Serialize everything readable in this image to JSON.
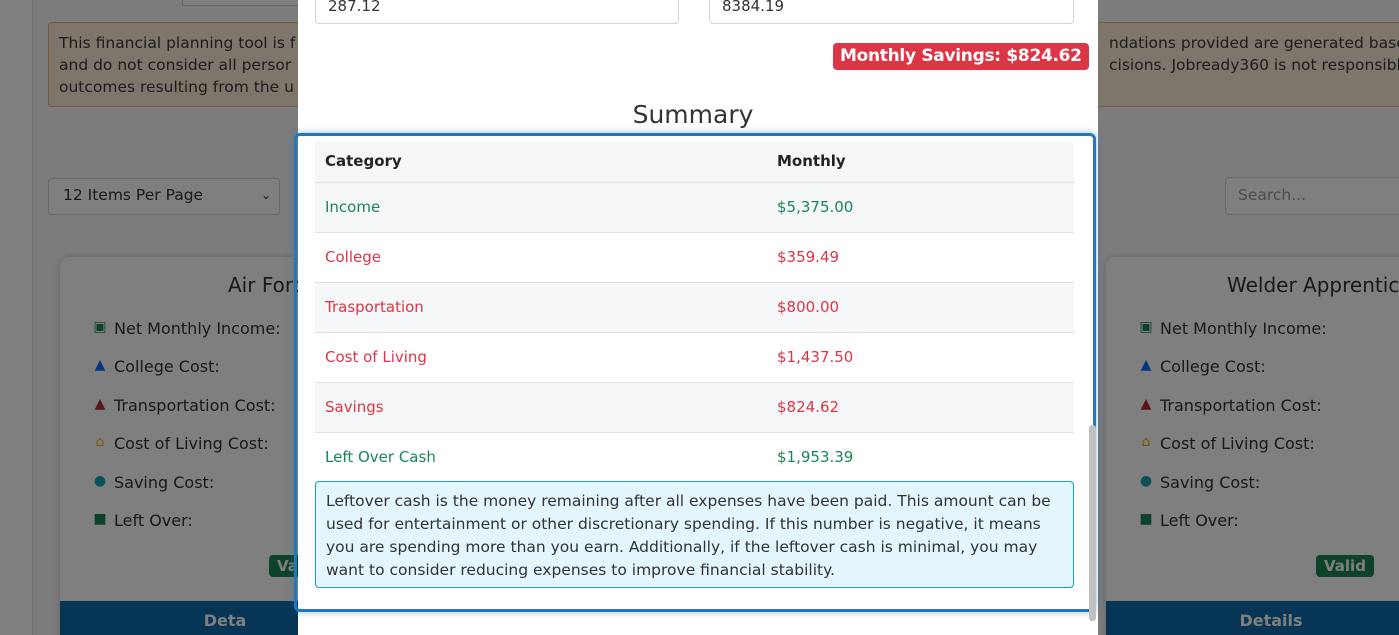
{
  "background": {
    "disclaimer_left": "This financial planning tool is f and do not consider all persor outcomes resulting from the u",
    "disclaimer_right": "ndations provided are generated base cisions. Jobready360 is not responsible",
    "per_page": "12 Items Per Page",
    "search_placeholder": "Search...",
    "cards": [
      {
        "title": "Air Forc",
        "rows": [
          "Net Monthly Income:",
          "College Cost:",
          "Transportation Cost:",
          "Cost of Living Cost:",
          "Saving Cost:",
          "Left Over:"
        ],
        "badge": "Va",
        "details": "Deta"
      },
      {
        "title": "Welder Apprentic",
        "rows": [
          "Net Monthly Income:",
          "College Cost:",
          "Transportation Cost:",
          "Cost of Living Cost:",
          "Saving Cost:",
          "Left Over:"
        ],
        "badge": "Valid",
        "details": "Details"
      }
    ]
  },
  "modal": {
    "input_a_value": "287.12",
    "input_b_value": "8384.19",
    "savings_badge": "Monthly Savings: $824.62",
    "summary_title": "Summary",
    "table": {
      "headers": [
        "Category",
        "Monthly"
      ],
      "rows": [
        {
          "category": "Income",
          "monthly": "$5,375.00",
          "color": "#198754"
        },
        {
          "category": "College",
          "monthly": "$359.49",
          "color": "#dc3545"
        },
        {
          "category": "Trasportation",
          "monthly": "$800.00",
          "color": "#dc3545"
        },
        {
          "category": "Cost of Living",
          "monthly": "$1,437.50",
          "color": "#dc3545"
        },
        {
          "category": "Savings",
          "monthly": "$824.62",
          "color": "#dc3545"
        },
        {
          "category": "Left Over Cash",
          "monthly": "$1,953.39",
          "color": "#198754"
        }
      ]
    },
    "info_text": "Leftover cash is the money remaining after all expenses have been paid. This amount can be used for entertainment or other discretionary spending. If this number is negative, it means you are spending more than you earn. Additionally, if the leftover cash is minimal, you may want to consider reducing expenses to improve financial stability."
  }
}
